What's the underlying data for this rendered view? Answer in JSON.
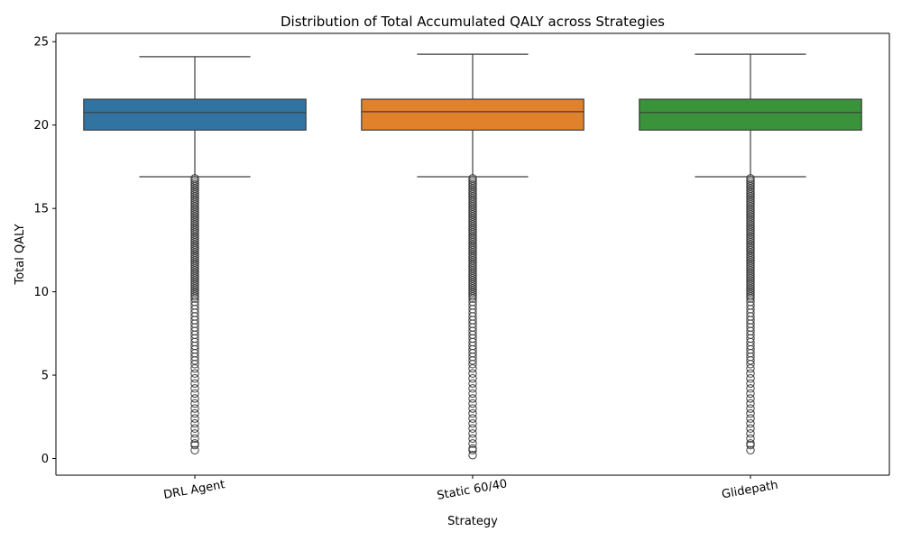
{
  "chart_data": {
    "type": "box",
    "title": "Distribution of Total Accumulated QALY across Strategies",
    "xlabel": "Strategy",
    "ylabel": "Total QALY",
    "ylim": [
      -1.0,
      25.5
    ],
    "yticks": [
      0,
      5,
      10,
      15,
      20,
      25
    ],
    "grid": false,
    "categories": [
      "DRL Agent",
      "Static 60/40",
      "Glidepath"
    ],
    "colors": [
      "#3274a1",
      "#e1812c",
      "#3a923a"
    ],
    "series": [
      {
        "category": "DRL Agent",
        "whisker_low": 16.9,
        "q1": 19.7,
        "median": 20.75,
        "q3": 21.55,
        "whisker_high": 24.1,
        "outlier_range": [
          0.5,
          16.8
        ]
      },
      {
        "category": "Static 60/40",
        "whisker_low": 16.9,
        "q1": 19.7,
        "median": 20.8,
        "q3": 21.55,
        "whisker_high": 24.25,
        "outlier_range": [
          0.2,
          16.8
        ]
      },
      {
        "category": "Glidepath",
        "whisker_low": 16.9,
        "q1": 19.7,
        "median": 20.75,
        "q3": 21.55,
        "whisker_high": 24.25,
        "outlier_range": [
          0.5,
          16.8
        ]
      }
    ]
  }
}
